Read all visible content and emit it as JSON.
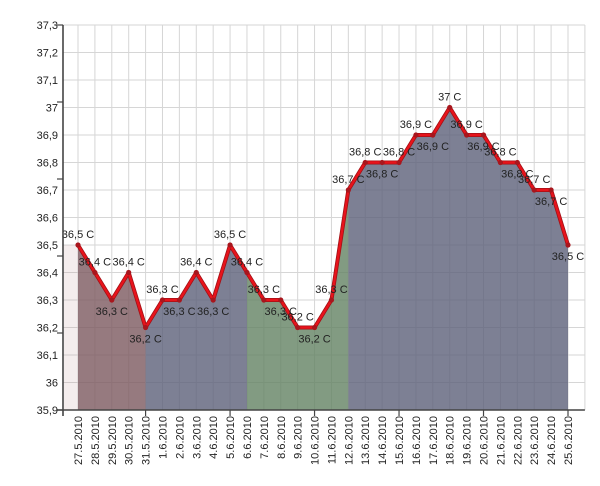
{
  "chart_data": {
    "type": "area",
    "title": "",
    "x": [
      "27.5.2010",
      "28.5.2010",
      "29.5.2010",
      "30.5.2010",
      "31.5.2010",
      "1.6.2010",
      "2.6.2010",
      "3.6.2010",
      "4.6.2010",
      "5.6.2010",
      "6.6.2010",
      "7.6.2010",
      "8.6.2010",
      "9.6.2010",
      "10.6.2010",
      "11.6.2010",
      "12.6.2010",
      "13.6.2010",
      "14.6.2010",
      "15.6.2010",
      "16.6.2010",
      "17.6.2010",
      "18.6.2010",
      "19.6.2010",
      "20.6.2010",
      "21.6.2010",
      "22.6.2010",
      "23.6.2010",
      "24.6.2010",
      "25.6.2010"
    ],
    "values": [
      36.5,
      36.4,
      36.3,
      36.4,
      36.2,
      36.3,
      36.3,
      36.4,
      36.3,
      36.5,
      36.4,
      36.3,
      36.3,
      36.2,
      36.2,
      36.3,
      36.7,
      36.8,
      36.8,
      36.8,
      36.9,
      36.9,
      37.0,
      36.9,
      36.9,
      36.8,
      36.8,
      36.7,
      36.7,
      36.5
    ],
    "point_labels": [
      "36,5 C",
      "36,4 C",
      "36,3 C",
      "36,4 C",
      "36,2 C",
      "36,3 C",
      "36,3 C",
      "36,4 C",
      "36,3 C",
      "36,5 C",
      "36,4 C",
      "36,3 C",
      "36,3 C",
      "36,2 C",
      "36,2 C",
      "36,3 C",
      "36,7 C",
      "36,8 C",
      "36,8 C",
      "36,8 C",
      "36,9 C",
      "36,9 C",
      "37 C",
      "36,9 C",
      "36,9 C",
      "36,8 C",
      "36,8 C",
      "36,7 C",
      "36,7 C",
      "36,5 C"
    ],
    "label_positions": [
      "above",
      "above",
      "below",
      "above",
      "below",
      "above",
      "below",
      "above",
      "below",
      "above",
      "above",
      "above",
      "below",
      "above",
      "below",
      "above",
      "above",
      "above",
      "below",
      "above",
      "above",
      "below",
      "above",
      "above",
      "below",
      "above",
      "below",
      "above",
      "below",
      "below"
    ],
    "ylim": [
      35.9,
      37.3
    ],
    "ytick_step": 0.1,
    "y_axis_labels": [
      "37,3",
      "37,2",
      "37,1",
      "37",
      "36,9",
      "36,8",
      "36,7",
      "36,6",
      "36,5",
      "36,4",
      "36,3",
      "36,2",
      "36,1",
      "36",
      "35,9"
    ],
    "x_major_tick_indices": [
      4,
      9,
      14,
      19,
      24,
      29
    ],
    "grid": true,
    "legend": false,
    "regions": [
      {
        "name": "region-1",
        "from_index": 0,
        "to_index": 4,
        "color": "#7c595f"
      },
      {
        "name": "region-2",
        "from_index": 4,
        "to_index": 10,
        "color": "#5d6079"
      },
      {
        "name": "region-3",
        "from_index": 10,
        "to_index": 16,
        "color": "#638263"
      },
      {
        "name": "region-4",
        "from_index": 16,
        "to_index": 29,
        "color": "#5d6079"
      }
    ],
    "colors": {
      "line": "#e8131b",
      "line_shadow": "#a01116",
      "marker": "#a8161d",
      "grid": "#d6d6d6",
      "axis": "#444444",
      "text": "#222222",
      "lead_in_strip": "#b98f8f"
    },
    "fill_opacity": 0.8
  }
}
